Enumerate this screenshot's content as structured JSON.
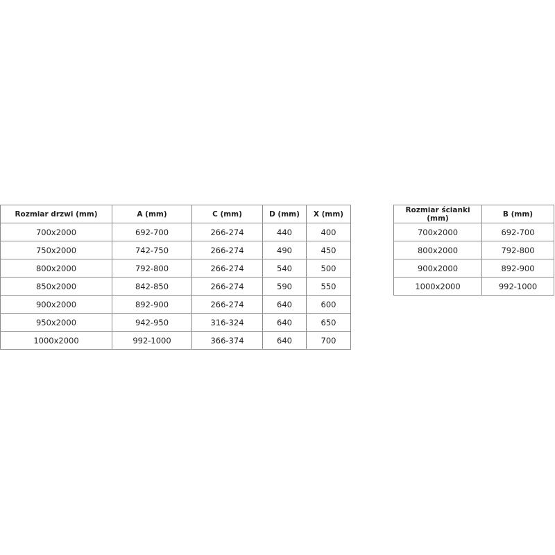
{
  "tables": [
    {
      "headers": [
        "Rozmiar drzwi (mm)",
        "A (mm)",
        "C (mm)",
        "D (mm)",
        "X (mm)"
      ],
      "rows": [
        [
          "700x2000",
          "692-700",
          "266-274",
          "440",
          "400"
        ],
        [
          "750x2000",
          "742-750",
          "266-274",
          "490",
          "450"
        ],
        [
          "800x2000",
          "792-800",
          "266-274",
          "540",
          "500"
        ],
        [
          "850x2000",
          "842-850",
          "266-274",
          "590",
          "550"
        ],
        [
          "900x2000",
          "892-900",
          "266-274",
          "640",
          "600"
        ],
        [
          "950x2000",
          "942-950",
          "316-324",
          "640",
          "650"
        ],
        [
          "1000x2000",
          "992-1000",
          "366-374",
          "640",
          "700"
        ]
      ]
    },
    {
      "headers": [
        "Rozmiar ścianki (mm)",
        "B (mm)"
      ],
      "rows": [
        [
          "700x2000",
          "692-700"
        ],
        [
          "800x2000",
          "792-800"
        ],
        [
          "900x2000",
          "892-900"
        ],
        [
          "1000x2000",
          "992-1000"
        ]
      ]
    }
  ]
}
